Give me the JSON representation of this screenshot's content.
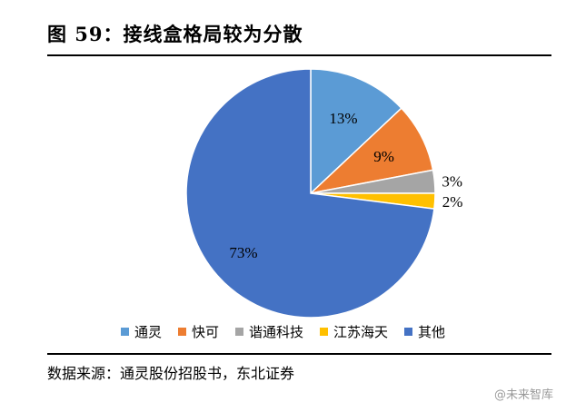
{
  "title": "图 59：接线盒格局较为分散",
  "source": "数据来源：通灵股份招股书，东北证券",
  "watermark": "@未来智库",
  "chart_data": {
    "type": "pie",
    "title": "",
    "legend_position": "bottom",
    "slices": [
      {
        "name": "通灵",
        "value": 13,
        "label": "13%",
        "color": "#5B9BD5"
      },
      {
        "name": "快可",
        "value": 9,
        "label": "9%",
        "color": "#ED7D31"
      },
      {
        "name": "谐通科技",
        "value": 3,
        "label": "3%",
        "color": "#A5A5A5"
      },
      {
        "name": "江苏海天",
        "value": 2,
        "label": "2%",
        "color": "#FFC000"
      },
      {
        "name": "其他",
        "value": 73,
        "label": "73%",
        "color": "#4472C4"
      }
    ]
  }
}
